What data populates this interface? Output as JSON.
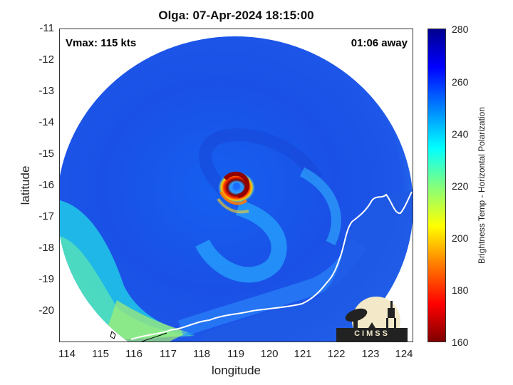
{
  "title": "Olga: 07-Apr-2024 18:15:00",
  "vmax_label": "Vmax: 115 kts",
  "time_away_label": "01:06 away",
  "xlabel": "longitude",
  "ylabel": "latitude",
  "colorbar": {
    "label": "Brightness Temp - Horizontal Polarization",
    "ticks": [
      "160",
      "180",
      "200",
      "220",
      "240",
      "260",
      "280"
    ],
    "range": [
      160,
      280
    ],
    "colormap": "jet"
  },
  "axes": {
    "x_ticks": [
      "114",
      "115",
      "116",
      "117",
      "118",
      "119",
      "120",
      "121",
      "122",
      "123",
      "124"
    ],
    "y_ticks": [
      "-11",
      "-12",
      "-13",
      "-14",
      "-15",
      "-16",
      "-17",
      "-18",
      "-19",
      "-20"
    ],
    "xlim": [
      113.8,
      124.3
    ],
    "ylim": [
      -21.0,
      -11.0
    ]
  },
  "storm_center": {
    "lon": 119.0,
    "lat": -16.0
  },
  "logo_text": "CIMSS",
  "colors": {
    "eyewall": "#b00000",
    "background_field": "#1a4fe0",
    "coastline": "#ffffff"
  }
}
